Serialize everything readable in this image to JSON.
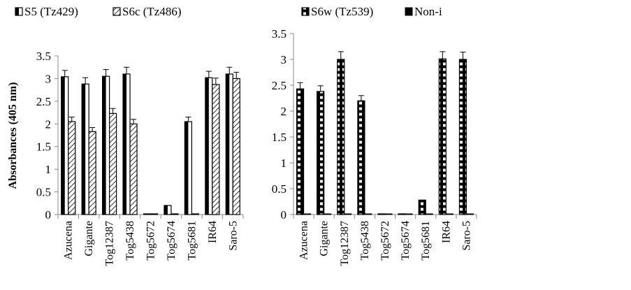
{
  "chart_data": [
    {
      "type": "bar",
      "title": "",
      "xlabel": "",
      "ylabel": "Absorbances (405 nm)",
      "ylim": [
        0,
        3.5
      ],
      "yticks": [
        "0",
        "0.5",
        "1",
        "1.5",
        "2",
        "2.5",
        "3",
        "3.5"
      ],
      "grid": false,
      "legend_position": "top",
      "categories": [
        "Azucena",
        "Gigante",
        "Tog12387",
        "Tog5438",
        "Tog5672",
        "Tog5674",
        "Tog5681",
        "IR64",
        "Saro-5"
      ],
      "series": [
        {
          "name": "S5 (Tz429)",
          "pattern": "half-black",
          "values": [
            3.04,
            2.88,
            3.05,
            3.1,
            0,
            0.2,
            2.05,
            3.02,
            3.1
          ],
          "errors": [
            0.14,
            0.14,
            0.15,
            0.15,
            0,
            0.01,
            0.1,
            0.14,
            0.15
          ]
        },
        {
          "name": "S6c (Tz486)",
          "pattern": "hatch",
          "values": [
            2.05,
            1.83,
            2.23,
            2.0,
            0,
            0,
            0,
            2.87,
            3.0
          ],
          "errors": [
            0.1,
            0.09,
            0.11,
            0.1,
            0,
            0,
            0,
            0.14,
            0.14
          ]
        }
      ]
    },
    {
      "type": "bar",
      "title": "",
      "xlabel": "",
      "ylabel": "",
      "ylim": [
        0,
        3.5
      ],
      "yticks": [
        "0",
        "0.5",
        "1",
        "1.5",
        "2",
        "2.5",
        "3",
        "3.5"
      ],
      "grid": false,
      "legend_position": "top",
      "categories": [
        "Azucena",
        "Gigante",
        "Tog12387",
        "Tog5438",
        "Tog5672",
        "Tog5674",
        "Tog5681",
        "IR64",
        "Saro-5"
      ],
      "series": [
        {
          "name": "S6w (Tz539)",
          "pattern": "checker",
          "values": [
            2.43,
            2.38,
            3.0,
            2.2,
            0,
            0,
            0.28,
            3.01,
            3.0
          ],
          "errors": [
            0.12,
            0.11,
            0.15,
            0.1,
            0,
            0,
            0.01,
            0.14,
            0.14
          ]
        },
        {
          "name": "Non-i",
          "pattern": "solid",
          "values": [
            0.01,
            0.01,
            0.01,
            0.01,
            0.01,
            0.01,
            0.01,
            0.01,
            0.01
          ],
          "errors": [
            0,
            0,
            0,
            0,
            0,
            0,
            0,
            0,
            0
          ]
        }
      ]
    }
  ]
}
